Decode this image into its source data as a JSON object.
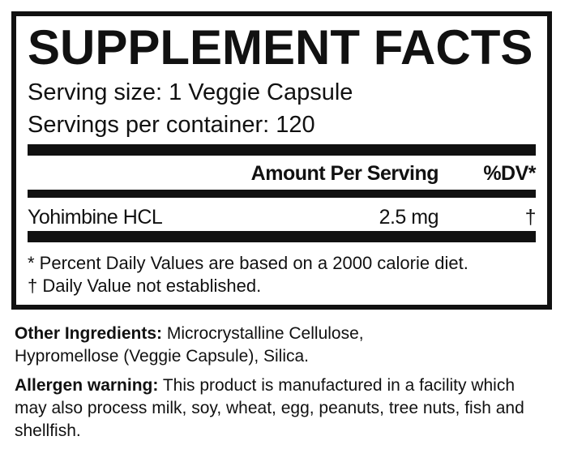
{
  "panel": {
    "title": "SUPPLEMENT FACTS",
    "serving_size": "Serving size: 1 Veggie Capsule",
    "servings_per_container": "Servings per container: 120",
    "header": {
      "amount": "Amount Per Serving",
      "dv": "%DV*"
    },
    "rows": [
      {
        "name": "Yohimbine HCL",
        "amount": "2.5 mg",
        "dv": "†"
      }
    ],
    "footnotes": [
      "* Percent Daily Values are based on a 2000 calorie diet.",
      "† Daily Value not established."
    ]
  },
  "other_ingredients": {
    "label": "Other Ingredients:",
    "text": " Microcrystalline Cellulose, Hypromellose (Veggie Capsule), Silica."
  },
  "allergen": {
    "label": "Allergen warning:",
    "text": " This product is manufactured in a facility which may also process milk, soy, wheat, egg, peanuts, tree nuts, fish and shellfish."
  }
}
